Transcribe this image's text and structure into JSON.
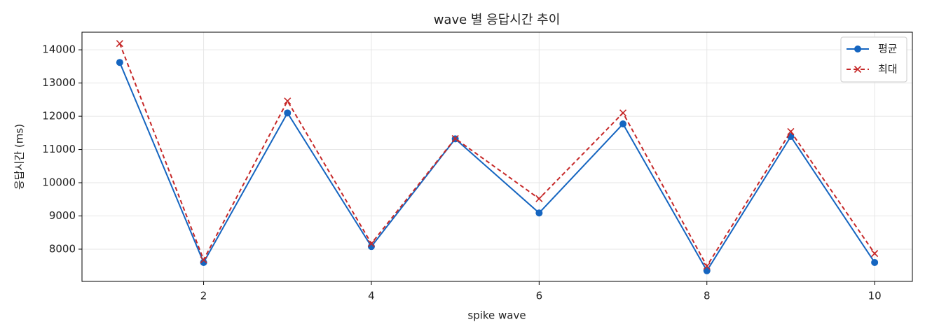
{
  "chart_data": {
    "type": "line",
    "title": "wave 별 응답시간 추이",
    "x_label": "spike wave",
    "y_label": "응답시간 (ms)",
    "x": [
      1,
      2,
      3,
      4,
      5,
      6,
      7,
      8,
      9,
      10
    ],
    "series": [
      {
        "name": "평균",
        "color": "#1565c0",
        "marker": "o",
        "linestyle": "solid",
        "values": [
          13620,
          7600,
          12100,
          8080,
          11320,
          9090,
          11770,
          7350,
          11390,
          7600
        ]
      },
      {
        "name": "최대",
        "color": "#c62828",
        "marker": "x",
        "linestyle": "dashed",
        "values": [
          14190,
          7680,
          12460,
          8170,
          11330,
          9520,
          12100,
          7490,
          11540,
          7870
        ]
      }
    ],
    "xlim": [
      0.55,
      10.45
    ],
    "xticks": [
      2,
      4,
      6,
      8,
      10
    ],
    "ylim": [
      7030,
      14530
    ],
    "yticks": [
      8000,
      9000,
      10000,
      11000,
      12000,
      13000,
      14000
    ],
    "grid": true,
    "legend": "upper right"
  }
}
